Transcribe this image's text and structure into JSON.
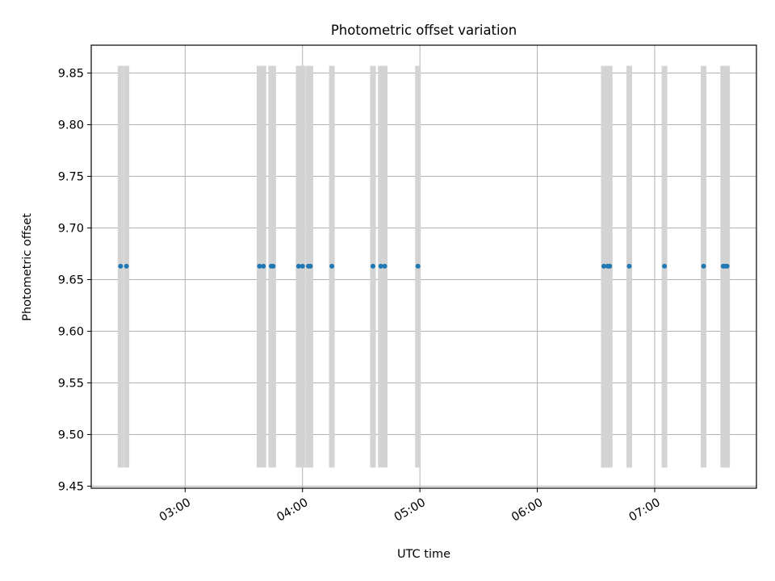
{
  "chart_data": {
    "type": "scatter",
    "title": "Photometric offset variation",
    "xlabel": "UTC time",
    "ylabel": "Photometric offset",
    "xlim": [
      "02:12",
      "07:52"
    ],
    "ylim": [
      9.448,
      9.877
    ],
    "grid": true,
    "x_ticks": [
      "03:00",
      "04:00",
      "05:00",
      "06:00",
      "07:00"
    ],
    "y_ticks": [
      "9.45",
      "9.50",
      "9.55",
      "9.60",
      "9.65",
      "9.70",
      "9.75",
      "9.80",
      "9.85"
    ],
    "band_range": [
      9.468,
      9.857
    ],
    "band_color": "#d3d3d3",
    "point_color": "#1f77b4",
    "series": [
      {
        "x": [
          "02:27",
          "02:30",
          "03:38",
          "03:40",
          "03:44",
          "03:45",
          "03:58",
          "04:00",
          "04:03",
          "04:04",
          "04:15",
          "04:36",
          "04:40",
          "04:42",
          "04:59",
          "06:34",
          "06:36",
          "06:37",
          "06:47",
          "07:05",
          "07:25",
          "07:35",
          "07:36",
          "07:37"
        ],
        "y": [
          9.663,
          9.663,
          9.663,
          9.663,
          9.663,
          9.663,
          9.663,
          9.663,
          9.663,
          9.663,
          9.663,
          9.663,
          9.663,
          9.663,
          9.663,
          9.663,
          9.663,
          9.663,
          9.663,
          9.663,
          9.663,
          9.663,
          9.663,
          9.663
        ]
      }
    ]
  }
}
